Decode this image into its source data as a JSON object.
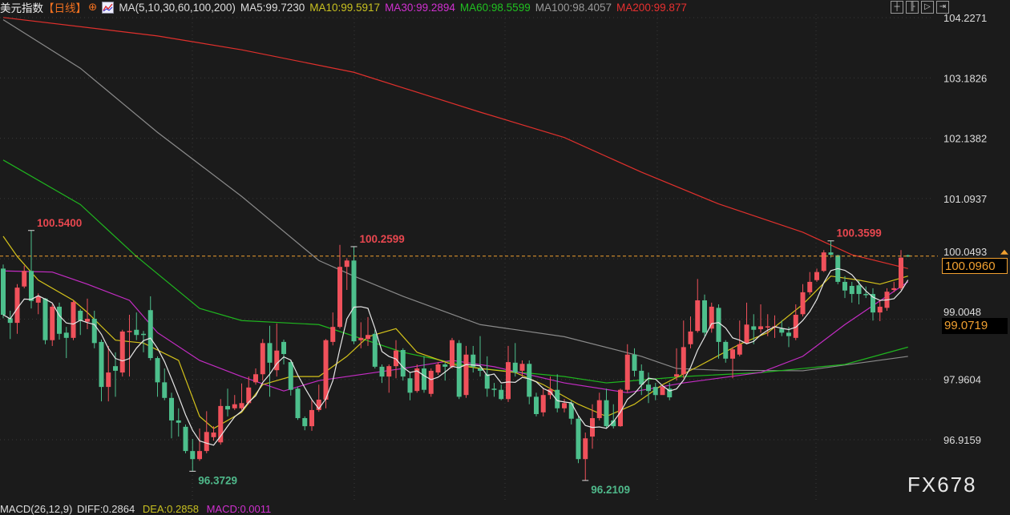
{
  "header": {
    "symbol": "美元指数",
    "period": "【日线】",
    "ma_group": "MA(5,10,30,60,100,200)",
    "ma5": "MA5:99.7230",
    "ma10": "MA10:99.5917",
    "ma30": "MA30:99.2894",
    "ma60": "MA60:98.5599",
    "ma100": "MA100:98.4057",
    "ma200": "MA200:99.877",
    "icons": [
      "crosshair-icon",
      "chart-indicator-icon"
    ]
  },
  "toolbar": {
    "buttons": [
      "crosshair-button",
      "zoom-in-bars-button",
      "play-button",
      "scroll-end-button"
    ]
  },
  "colors": {
    "background": "#1b1b1b",
    "up": "#f0515b",
    "down": "#4dbf8c",
    "ma5": "#e6e6e6",
    "ma10": "#d4c21b",
    "ma30": "#c42cc4",
    "ma60": "#1fb51f",
    "ma100": "#8a8a8a",
    "ma200": "#e0302c",
    "current_price": "#f0a030"
  },
  "macd": {
    "title": "MACD(26,12,9)",
    "diff": "DIFF:0.2864",
    "dea": "DEA:0.2858",
    "macd": "MACD:0.0011"
  },
  "watermark": "FX678",
  "chart_data": {
    "type": "candlestick",
    "y_ticks": [
      "104.2271",
      "103.1826",
      "102.1382",
      "101.0937",
      "100.0493",
      "99.0048",
      "97.9604",
      "96.9159"
    ],
    "ylim": [
      96.9159,
      104.2271
    ],
    "current_price": "100.0960",
    "marker_price": "99.0719",
    "annotations": [
      {
        "text": "100.5400",
        "bar": 4,
        "type": "high"
      },
      {
        "text": "96.3729",
        "bar": 27,
        "type": "low"
      },
      {
        "text": "100.2599",
        "bar": 50,
        "type": "high"
      },
      {
        "text": "96.2109",
        "bar": 83,
        "type": "low"
      },
      {
        "text": "100.3599",
        "bar": 118,
        "type": "high"
      }
    ],
    "ohlc": [
      [
        99.88,
        99.95,
        99.02,
        99.08
      ],
      [
        99.02,
        99.15,
        98.66,
        98.94
      ],
      [
        98.94,
        99.61,
        98.75,
        99.55
      ],
      [
        99.57,
        99.93,
        99.54,
        99.84
      ],
      [
        99.84,
        100.54,
        99.19,
        99.32
      ],
      [
        99.29,
        99.45,
        99.09,
        99.4
      ],
      [
        99.36,
        99.37,
        98.57,
        98.64
      ],
      [
        98.64,
        99.26,
        98.54,
        99.22
      ],
      [
        99.22,
        99.29,
        98.65,
        98.75
      ],
      [
        98.77,
        98.87,
        98.33,
        98.68
      ],
      [
        98.68,
        99.33,
        98.64,
        99.3
      ],
      [
        99.15,
        99.18,
        98.73,
        98.98
      ],
      [
        98.96,
        99.36,
        98.83,
        99.01
      ],
      [
        99.01,
        99.15,
        98.5,
        98.59
      ],
      [
        98.61,
        98.65,
        97.58,
        97.83
      ],
      [
        97.83,
        98.54,
        97.58,
        98.08
      ],
      [
        98.19,
        98.43,
        97.66,
        98.11
      ],
      [
        98.08,
        98.82,
        98.01,
        98.79
      ],
      [
        98.79,
        99.08,
        98.01,
        98.8
      ],
      [
        98.82,
        99.12,
        98.64,
        98.73
      ],
      [
        98.75,
        98.8,
        98.43,
        98.73
      ],
      [
        99.16,
        99.4,
        98.29,
        98.33
      ],
      [
        98.33,
        98.36,
        97.66,
        97.91
      ],
      [
        97.91,
        98.15,
        97.6,
        97.64
      ],
      [
        97.64,
        97.73,
        96.94,
        97.25
      ],
      [
        97.25,
        97.46,
        96.97,
        97.21
      ],
      [
        97.14,
        97.18,
        96.68,
        96.72
      ],
      [
        96.72,
        96.93,
        96.37,
        96.58
      ],
      [
        96.58,
        97.11,
        96.55,
        96.72
      ],
      [
        96.72,
        97.41,
        96.68,
        97.05
      ],
      [
        96.96,
        97.15,
        96.9,
        97.04
      ],
      [
        96.87,
        97.62,
        96.83,
        97.5
      ],
      [
        97.5,
        97.8,
        97.32,
        97.44
      ],
      [
        97.46,
        97.69,
        97.43,
        97.53
      ],
      [
        97.46,
        97.89,
        97.43,
        97.55
      ],
      [
        97.55,
        98.01,
        97.53,
        97.82
      ],
      [
        97.91,
        98.15,
        97.87,
        98.05
      ],
      [
        98.05,
        98.66,
        97.94,
        98.59
      ],
      [
        98.59,
        98.89,
        97.66,
        98.25
      ],
      [
        98.12,
        98.93,
        98.01,
        98.46
      ],
      [
        98.61,
        98.65,
        98.22,
        98.4
      ],
      [
        98.26,
        98.29,
        97.68,
        97.78
      ],
      [
        97.8,
        97.83,
        97.26,
        97.29
      ],
      [
        97.29,
        97.32,
        97.08,
        97.15
      ],
      [
        97.15,
        97.6,
        97.07,
        97.43
      ],
      [
        97.43,
        97.87,
        97.4,
        97.61
      ],
      [
        97.61,
        98.66,
        97.46,
        98.64
      ],
      [
        98.61,
        99.12,
        98.55,
        98.87
      ],
      [
        98.87,
        100.29,
        98.84,
        99.91
      ],
      [
        99.91,
        100.06,
        99.51,
        100.02
      ],
      [
        100.02,
        100.26,
        98.57,
        98.62
      ],
      [
        98.64,
        98.95,
        98.5,
        98.68
      ],
      [
        98.66,
        99.04,
        98.54,
        98.73
      ],
      [
        98.75,
        98.82,
        98.15,
        98.18
      ],
      [
        98.18,
        98.22,
        97.9,
        98.01
      ],
      [
        98.01,
        98.22,
        97.73,
        98.19
      ],
      [
        98.19,
        98.64,
        97.98,
        98.46
      ],
      [
        98.47,
        98.5,
        97.94,
        98.01
      ],
      [
        97.98,
        98.08,
        97.6,
        97.73
      ],
      [
        97.76,
        98.22,
        97.73,
        98.15
      ],
      [
        98.15,
        98.36,
        97.73,
        97.78
      ],
      [
        97.71,
        98.15,
        97.66,
        98.11
      ],
      [
        98.08,
        98.26,
        98.04,
        98.22
      ],
      [
        98.22,
        98.25,
        97.94,
        98.18
      ],
      [
        98.18,
        98.68,
        98.15,
        98.64
      ],
      [
        98.59,
        98.64,
        97.62,
        97.66
      ],
      [
        97.69,
        98.54,
        97.64,
        98.39
      ],
      [
        98.39,
        98.54,
        98.08,
        98.18
      ],
      [
        98.15,
        98.71,
        98.01,
        98.11
      ],
      [
        98.05,
        98.36,
        97.66,
        97.8
      ],
      [
        97.8,
        97.9,
        97.66,
        97.79
      ],
      [
        97.78,
        97.87,
        97.6,
        97.62
      ],
      [
        97.62,
        98.54,
        97.57,
        98.26
      ],
      [
        98.25,
        98.59,
        98.01,
        98.08
      ],
      [
        98.11,
        98.29,
        98.01,
        98.23
      ],
      [
        98.23,
        98.29,
        97.53,
        97.66
      ],
      [
        97.66,
        97.73,
        97.32,
        97.36
      ],
      [
        97.39,
        97.8,
        97.32,
        97.69
      ],
      [
        97.69,
        98.01,
        97.62,
        97.79
      ],
      [
        97.78,
        98.05,
        97.39,
        97.46
      ],
      [
        97.46,
        97.62,
        97.39,
        97.55
      ],
      [
        97.55,
        97.6,
        97.18,
        97.28
      ],
      [
        97.28,
        97.32,
        96.51,
        96.58
      ],
      [
        96.58,
        97.04,
        96.21,
        96.94
      ],
      [
        96.97,
        97.53,
        96.76,
        97.29
      ],
      [
        97.29,
        97.73,
        97.25,
        97.6
      ],
      [
        97.6,
        97.8,
        97.11,
        97.15
      ],
      [
        97.25,
        97.53,
        97.11,
        97.15
      ],
      [
        97.15,
        97.8,
        97.14,
        97.78
      ],
      [
        97.78,
        98.57,
        97.73,
        98.39
      ],
      [
        98.39,
        98.5,
        98.01,
        98.11
      ],
      [
        98.11,
        98.22,
        97.69,
        97.87
      ],
      [
        97.87,
        98.08,
        97.55,
        97.76
      ],
      [
        97.83,
        97.9,
        97.6,
        97.69
      ],
      [
        97.69,
        97.87,
        97.75,
        97.83
      ],
      [
        97.8,
        97.9,
        97.6,
        97.65
      ],
      [
        98.01,
        98.5,
        97.94,
        98.05
      ],
      [
        98.05,
        98.98,
        97.98,
        98.52
      ],
      [
        98.57,
        99.05,
        98.5,
        98.79
      ],
      [
        98.8,
        99.7,
        98.77,
        99.33
      ],
      [
        99.33,
        99.43,
        98.71,
        98.77
      ],
      [
        98.84,
        99.29,
        98.77,
        99.22
      ],
      [
        99.2,
        99.26,
        98.32,
        98.61
      ],
      [
        98.61,
        98.64,
        98.25,
        98.32
      ],
      [
        98.32,
        98.52,
        97.98,
        98.48
      ],
      [
        98.39,
        98.98,
        98.36,
        98.57
      ],
      [
        98.59,
        99.29,
        98.57,
        98.91
      ],
      [
        98.88,
        99.09,
        98.57,
        98.82
      ],
      [
        98.83,
        99.26,
        98.77,
        98.88
      ],
      [
        98.86,
        99.09,
        98.71,
        98.88
      ],
      [
        98.86,
        99.07,
        98.68,
        98.88
      ],
      [
        98.84,
        98.98,
        98.71,
        98.77
      ],
      [
        98.77,
        98.87,
        98.52,
        98.71
      ],
      [
        98.68,
        99.26,
        98.64,
        99.08
      ],
      [
        99.09,
        99.61,
        99.05,
        99.47
      ],
      [
        99.47,
        99.82,
        99.43,
        99.65
      ],
      [
        99.68,
        99.88,
        99.65,
        99.82
      ],
      [
        99.84,
        100.2,
        99.82,
        100.16
      ],
      [
        100.16,
        100.36,
        100.07,
        100.12
      ],
      [
        100.11,
        100.12,
        99.61,
        99.65
      ],
      [
        99.65,
        99.75,
        99.37,
        99.5
      ],
      [
        99.58,
        99.65,
        99.29,
        99.44
      ],
      [
        99.59,
        99.68,
        99.26,
        99.44
      ],
      [
        99.44,
        99.57,
        99.37,
        99.43
      ],
      [
        99.44,
        99.54,
        98.98,
        99.12
      ],
      [
        99.12,
        99.33,
        98.97,
        99.22
      ],
      [
        99.2,
        99.54,
        99.15,
        99.48
      ],
      [
        99.51,
        99.65,
        99.47,
        99.54
      ],
      [
        99.54,
        100.2,
        99.51,
        100.07
      ],
      [
        100.11,
        100.12,
        100.08,
        100.1
      ]
    ],
    "ma_lines": {
      "ma10": [
        [
          0,
          100.44
        ],
        [
          2,
          100.09
        ],
        [
          5,
          99.68
        ],
        [
          10,
          99.33
        ],
        [
          12,
          99.12
        ],
        [
          16,
          98.64
        ],
        [
          20,
          98.59
        ],
        [
          25,
          98.29
        ],
        [
          28,
          97.32
        ],
        [
          30,
          97.11
        ],
        [
          34,
          97.39
        ],
        [
          37,
          97.87
        ],
        [
          41,
          98.01
        ],
        [
          45,
          98.01
        ],
        [
          49,
          98.36
        ],
        [
          52,
          98.7
        ],
        [
          56,
          98.84
        ],
        [
          59,
          98.43
        ],
        [
          64,
          98.22
        ],
        [
          68,
          98.15
        ],
        [
          73,
          98.08
        ],
        [
          77,
          97.87
        ],
        [
          82,
          97.53
        ],
        [
          86,
          97.32
        ],
        [
          90,
          97.53
        ],
        [
          94,
          97.87
        ],
        [
          99,
          98.18
        ],
        [
          105,
          98.57
        ],
        [
          109,
          98.77
        ],
        [
          114,
          99.26
        ],
        [
          118,
          99.75
        ],
        [
          122,
          99.68
        ],
        [
          125,
          99.61
        ],
        [
          129,
          99.75
        ]
      ],
      "ma30": [
        [
          0,
          99.84
        ],
        [
          7,
          99.82
        ],
        [
          12,
          99.61
        ],
        [
          18,
          99.33
        ],
        [
          22,
          98.77
        ],
        [
          28,
          98.29
        ],
        [
          34,
          98.01
        ],
        [
          40,
          97.76
        ],
        [
          45,
          97.94
        ],
        [
          57,
          98.15
        ],
        [
          64,
          98.29
        ],
        [
          70,
          98.18
        ],
        [
          80,
          97.9
        ],
        [
          89,
          97.73
        ],
        [
          97,
          97.9
        ],
        [
          108,
          98.08
        ],
        [
          114,
          98.36
        ],
        [
          120,
          98.91
        ],
        [
          129,
          99.65
        ]
      ],
      "ma60": [
        [
          0,
          101.76
        ],
        [
          11,
          100.99
        ],
        [
          19,
          100.09
        ],
        [
          28,
          99.19
        ],
        [
          34,
          98.98
        ],
        [
          45,
          98.91
        ],
        [
          57,
          98.43
        ],
        [
          68,
          98.15
        ],
        [
          80,
          98.01
        ],
        [
          86,
          97.9
        ],
        [
          97,
          98.01
        ],
        [
          108,
          98.08
        ],
        [
          120,
          98.22
        ],
        [
          129,
          98.52
        ]
      ],
      "ma100": [
        [
          0,
          104.19
        ],
        [
          11,
          103.35
        ],
        [
          22,
          102.24
        ],
        [
          34,
          101.13
        ],
        [
          45,
          100.02
        ],
        [
          50,
          99.75
        ],
        [
          57,
          99.4
        ],
        [
          68,
          98.91
        ],
        [
          80,
          98.7
        ],
        [
          91,
          98.36
        ],
        [
          96,
          98.15
        ],
        [
          102,
          98.12
        ],
        [
          114,
          98.11
        ],
        [
          129,
          98.36
        ]
      ],
      "ma200": [
        [
          0,
          104.23
        ],
        [
          22,
          103.91
        ],
        [
          34,
          103.67
        ],
        [
          50,
          103.28
        ],
        [
          68,
          102.59
        ],
        [
          80,
          102.15
        ],
        [
          91,
          101.55
        ],
        [
          102,
          101.0
        ],
        [
          114,
          100.51
        ],
        [
          121,
          100.12
        ],
        [
          129,
          99.88
        ]
      ]
    }
  }
}
